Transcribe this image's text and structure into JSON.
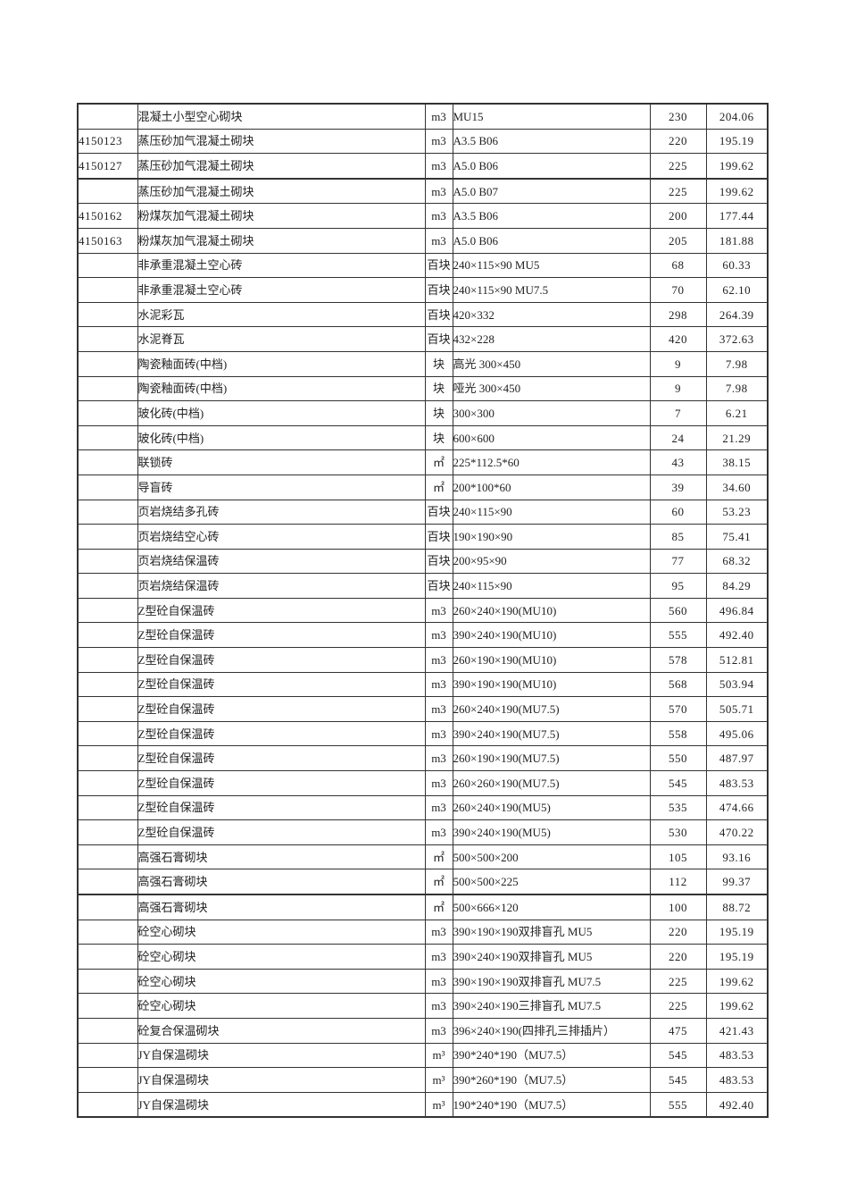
{
  "page": {
    "background": "#ffffff",
    "text_color": "#222222",
    "border_color": "#333333"
  },
  "table": {
    "columns": [
      {
        "key": "code",
        "align": "left"
      },
      {
        "key": "name",
        "align": "left"
      },
      {
        "key": "unit",
        "align": "center"
      },
      {
        "key": "spec",
        "align": "left"
      },
      {
        "key": "price1",
        "align": "center"
      },
      {
        "key": "price2",
        "align": "center"
      }
    ],
    "thick_bottom_rows": [
      2,
      31
    ],
    "rows": [
      [
        "",
        "混凝土小型空心砌块",
        "m3",
        "MU15",
        "230",
        "204.06"
      ],
      [
        "4150123",
        "蒸压砂加气混凝土砌块",
        "m3",
        "A3.5 B06",
        "220",
        "195.19"
      ],
      [
        "4150127",
        "蒸压砂加气混凝土砌块",
        "m3",
        "A5.0 B06",
        "225",
        "199.62"
      ],
      [
        "",
        "蒸压砂加气混凝土砌块",
        "m3",
        "A5.0 B07",
        "225",
        "199.62"
      ],
      [
        "4150162",
        "粉煤灰加气混凝土砌块",
        "m3",
        "A3.5 B06",
        "200",
        "177.44"
      ],
      [
        "4150163",
        "粉煤灰加气混凝土砌块",
        "m3",
        "A5.0 B06",
        "205",
        "181.88"
      ],
      [
        "",
        "非承重混凝土空心砖",
        "百块",
        "240×115×90 MU5",
        "68",
        "60.33"
      ],
      [
        "",
        "非承重混凝土空心砖",
        "百块",
        "240×115×90 MU7.5",
        "70",
        "62.10"
      ],
      [
        "",
        "水泥彩瓦",
        "百块",
        "420×332",
        "298",
        "264.39"
      ],
      [
        "",
        "水泥脊瓦",
        "百块",
        "432×228",
        "420",
        "372.63"
      ],
      [
        "",
        "陶瓷釉面砖(中档)",
        "块",
        "高光 300×450",
        "9",
        "7.98"
      ],
      [
        "",
        "陶瓷釉面砖(中档)",
        "块",
        "哑光 300×450",
        "9",
        "7.98"
      ],
      [
        "",
        "玻化砖(中档)",
        "块",
        "300×300",
        "7",
        "6.21"
      ],
      [
        "",
        "玻化砖(中档)",
        "块",
        "600×600",
        "24",
        "21.29"
      ],
      [
        "",
        "联锁砖",
        "㎡",
        "225*112.5*60",
        "43",
        "38.15"
      ],
      [
        "",
        "导盲砖",
        "㎡",
        "200*100*60",
        "39",
        "34.60"
      ],
      [
        "",
        "页岩烧结多孔砖",
        "百块",
        "240×115×90",
        "60",
        "53.23"
      ],
      [
        "",
        "页岩烧结空心砖",
        "百块",
        "190×190×90",
        "85",
        "75.41"
      ],
      [
        "",
        "页岩烧结保温砖",
        "百块",
        "200×95×90",
        "77",
        "68.32"
      ],
      [
        "",
        "页岩烧结保温砖",
        "百块",
        "240×115×90",
        "95",
        "84.29"
      ],
      [
        "",
        "Z型砼自保温砖",
        "m3",
        "260×240×190(MU10)",
        "560",
        "496.84"
      ],
      [
        "",
        "Z型砼自保温砖",
        "m3",
        "390×240×190(MU10)",
        "555",
        "492.40"
      ],
      [
        "",
        "Z型砼自保温砖",
        "m3",
        "260×190×190(MU10)",
        "578",
        "512.81"
      ],
      [
        "",
        "Z型砼自保温砖",
        "m3",
        "390×190×190(MU10)",
        "568",
        "503.94"
      ],
      [
        "",
        "Z型砼自保温砖",
        "m3",
        "260×240×190(MU7.5)",
        "570",
        "505.71"
      ],
      [
        "",
        "Z型砼自保温砖",
        "m3",
        "390×240×190(MU7.5)",
        "558",
        "495.06"
      ],
      [
        "",
        "Z型砼自保温砖",
        "m3",
        "260×190×190(MU7.5)",
        "550",
        "487.97"
      ],
      [
        "",
        "Z型砼自保温砖",
        "m3",
        "260×260×190(MU7.5)",
        "545",
        "483.53"
      ],
      [
        "",
        "Z型砼自保温砖",
        "m3",
        "260×240×190(MU5)",
        "535",
        "474.66"
      ],
      [
        "",
        "Z型砼自保温砖",
        "m3",
        "390×240×190(MU5)",
        "530",
        "470.22"
      ],
      [
        "",
        "高强石膏砌块",
        "㎡",
        "500×500×200",
        "105",
        "93.16"
      ],
      [
        "",
        "高强石膏砌块",
        "㎡",
        "500×500×225",
        "112",
        "99.37"
      ],
      [
        "",
        "高强石膏砌块",
        "㎡",
        "500×666×120",
        "100",
        "88.72"
      ],
      [
        "",
        "砼空心砌块",
        "m3",
        "390×190×190双排盲孔 MU5",
        "220",
        "195.19"
      ],
      [
        "",
        "砼空心砌块",
        "m3",
        "390×240×190双排盲孔 MU5",
        "220",
        "195.19"
      ],
      [
        "",
        "砼空心砌块",
        "m3",
        "390×190×190双排盲孔 MU7.5",
        "225",
        "199.62"
      ],
      [
        "",
        "砼空心砌块",
        "m3",
        "390×240×190三排盲孔 MU7.5",
        "225",
        "199.62"
      ],
      [
        "",
        "砼复合保温砌块",
        "m3",
        "396×240×190(四排孔三排插片）",
        "475",
        "421.43"
      ],
      [
        "",
        "JY自保温砌块",
        "m³",
        "390*240*190（MU7.5）",
        "545",
        "483.53"
      ],
      [
        "",
        "JY自保温砌块",
        "m³",
        "390*260*190（MU7.5）",
        "545",
        "483.53"
      ],
      [
        "",
        "JY自保温砌块",
        "m³",
        "190*240*190（MU7.5）",
        "555",
        "492.40"
      ]
    ]
  }
}
